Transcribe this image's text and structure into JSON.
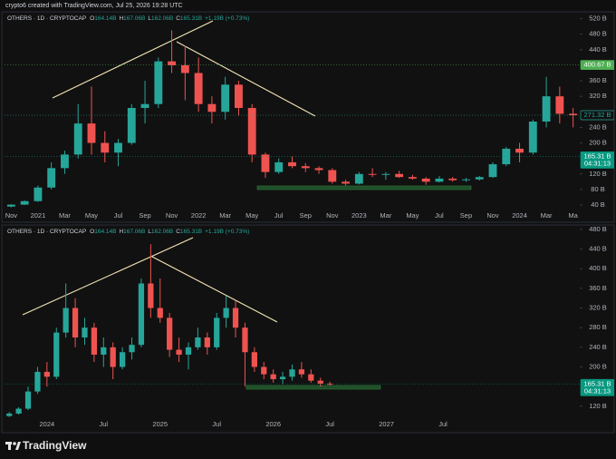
{
  "header": "crypto6 created with TradingView.com, Jul 25, 2026 19:28 UTC",
  "brand": "TradingView",
  "chart_data": [
    {
      "type": "candlestick",
      "symbol": "OTHERS · 1D · CRYPTOCAP",
      "ohlc": [
        {
          "key": "O",
          "value": "164.14B"
        },
        {
          "key": "H",
          "value": "167.06B"
        },
        {
          "key": "L",
          "value": "162.06B"
        },
        {
          "key": "C",
          "value": "165.31B"
        }
      ],
      "change": "+1.19B (+0.73%)",
      "categories": [
        "Nov",
        null,
        "2021",
        null,
        "Mar",
        null,
        "May",
        null,
        "Jul",
        null,
        "Sep",
        null,
        "Nov",
        null,
        "2022",
        null,
        "Mar",
        null,
        "May",
        null,
        "Jul",
        null,
        "Sep",
        null,
        "Nov",
        null,
        "2023",
        null,
        "Mar",
        null,
        "May",
        null,
        "Jul",
        null,
        "Sep",
        null,
        "Nov",
        null,
        "2024",
        null,
        "Mar",
        null,
        "Ma"
      ],
      "open": [
        36,
        41,
        50,
        85,
        135,
        170,
        250,
        200,
        175,
        200,
        290,
        300,
        410,
        400,
        380,
        300,
        280,
        350,
        290,
        170,
        125,
        150,
        140,
        135,
        130,
        100,
        95,
        120,
        118,
        120,
        112,
        108,
        100,
        108,
        104,
        106,
        112,
        145,
        185,
        175,
        255,
        320,
        275
      ],
      "high": [
        42,
        52,
        90,
        150,
        180,
        300,
        345,
        230,
        210,
        300,
        360,
        420,
        490,
        450,
        420,
        320,
        370,
        360,
        300,
        175,
        160,
        165,
        148,
        140,
        135,
        105,
        125,
        135,
        125,
        128,
        118,
        112,
        115,
        112,
        110,
        115,
        150,
        190,
        200,
        260,
        370,
        345,
        290
      ],
      "low": [
        34,
        40,
        48,
        80,
        120,
        160,
        170,
        150,
        140,
        195,
        250,
        290,
        380,
        310,
        280,
        250,
        260,
        270,
        150,
        110,
        120,
        135,
        125,
        120,
        95,
        90,
        93,
        112,
        105,
        110,
        105,
        92,
        98,
        100,
        100,
        103,
        110,
        140,
        150,
        170,
        240,
        250,
        240
      ],
      "close": [
        41,
        50,
        85,
        135,
        170,
        250,
        200,
        175,
        200,
        290,
        300,
        410,
        400,
        380,
        300,
        280,
        350,
        290,
        170,
        125,
        150,
        140,
        135,
        130,
        100,
        95,
        120,
        118,
        120,
        112,
        108,
        100,
        108,
        104,
        106,
        112,
        145,
        185,
        175,
        255,
        320,
        275,
        271.32
      ],
      "up_color": "#26a69a",
      "down_color": "#ef5350",
      "ylim": [
        26,
        540
      ],
      "yticks": [
        {
          "value": 520,
          "label": "520 B"
        },
        {
          "value": 480,
          "label": "480 B"
        },
        {
          "value": 440,
          "label": "440 B"
        },
        {
          "value": 360,
          "label": "360 B"
        },
        {
          "value": 320,
          "label": "320 B"
        },
        {
          "value": 240,
          "label": "240 B"
        },
        {
          "value": 200,
          "label": "200 B"
        },
        {
          "value": 120,
          "label": "120 B"
        },
        {
          "value": 80,
          "label": "80 B"
        },
        {
          "value": 40,
          "label": "40 B"
        }
      ],
      "price_labels": [
        {
          "value": 400.67,
          "label": "400.67 B",
          "color": "#4caf50"
        },
        {
          "value": 271.32,
          "label": "271.32 B",
          "color": "#26a69a",
          "outlined": true
        },
        {
          "value": 165.31,
          "label": "165.31 B",
          "countdown": "04:31:13",
          "color": "#089981"
        }
      ]
    },
    {
      "type": "candlestick",
      "symbol": "OTHERS · 1D · CRYPTOCAP",
      "ohlc": [
        {
          "key": "O",
          "value": "164.14B"
        },
        {
          "key": "H",
          "value": "167.06B"
        },
        {
          "key": "L",
          "value": "162.06B"
        },
        {
          "key": "C",
          "value": "165.31B"
        }
      ],
      "change": "+1.19B (+0.73%)",
      "categories": [
        null,
        null,
        null,
        null,
        "2024",
        null,
        null,
        null,
        null,
        null,
        "Jul",
        null,
        null,
        null,
        null,
        null,
        "2025",
        null,
        null,
        null,
        null,
        null,
        "Jul",
        null,
        null,
        null,
        null,
        null,
        "2026",
        null,
        null,
        null,
        null,
        null,
        "Jul",
        null,
        null,
        null,
        null,
        null,
        "2027",
        null,
        null,
        null,
        null,
        null,
        "Jul",
        null,
        null,
        null,
        null,
        null,
        null,
        null,
        null,
        null,
        null,
        null,
        null,
        null,
        null
      ],
      "open": [
        100,
        105,
        115,
        150,
        190,
        180,
        270,
        320,
        260,
        280,
        225,
        240,
        200,
        230,
        245,
        370,
        320,
        300,
        235,
        225,
        240,
        260,
        240,
        300,
        320,
        280,
        230,
        200,
        185,
        175,
        180,
        195,
        185,
        172,
        166,
        null,
        null,
        null,
        null,
        null,
        null,
        null,
        null,
        null,
        null,
        null,
        null,
        null,
        null,
        null,
        null,
        null,
        null,
        null,
        null,
        null,
        null,
        null,
        null,
        null,
        null
      ],
      "high": [
        108,
        118,
        160,
        200,
        210,
        280,
        370,
        340,
        300,
        290,
        260,
        250,
        240,
        260,
        380,
        450,
        380,
        310,
        260,
        250,
        280,
        270,
        310,
        345,
        335,
        290,
        240,
        210,
        195,
        190,
        205,
        210,
        195,
        178,
        170,
        null,
        null,
        null,
        null,
        null,
        null,
        null,
        null,
        null,
        null,
        null,
        null,
        null,
        null,
        null,
        null,
        null,
        null,
        null,
        null,
        null,
        null,
        null,
        null,
        null,
        null
      ],
      "low": [
        98,
        103,
        112,
        145,
        160,
        175,
        260,
        240,
        245,
        210,
        200,
        175,
        195,
        215,
        240,
        300,
        290,
        220,
        210,
        195,
        235,
        225,
        235,
        280,
        260,
        160,
        190,
        175,
        168,
        165,
        172,
        178,
        168,
        160,
        162,
        null,
        null,
        null,
        null,
        null,
        null,
        null,
        null,
        null,
        null,
        null,
        null,
        null,
        null,
        null,
        null,
        null,
        null,
        null,
        null,
        null,
        null,
        null,
        null,
        null,
        null
      ],
      "close": [
        105,
        115,
        150,
        190,
        180,
        270,
        320,
        260,
        280,
        225,
        240,
        200,
        230,
        245,
        370,
        320,
        300,
        235,
        225,
        240,
        260,
        240,
        300,
        320,
        280,
        230,
        200,
        185,
        175,
        180,
        195,
        185,
        172,
        166,
        165.31,
        null,
        null,
        null,
        null,
        null,
        null,
        null,
        null,
        null,
        null,
        null,
        null,
        null,
        null,
        null,
        null,
        null,
        null,
        null,
        null,
        null,
        null,
        null,
        null,
        null,
        null
      ],
      "up_color": "#26a69a",
      "down_color": "#ef5350",
      "ylim": [
        79,
        491
      ],
      "yticks": [
        {
          "value": 480,
          "label": "480 B"
        },
        {
          "value": 440,
          "label": "440 B"
        },
        {
          "value": 400,
          "label": "400 B"
        },
        {
          "value": 360,
          "label": "360 B"
        },
        {
          "value": 320,
          "label": "320 B"
        },
        {
          "value": 280,
          "label": "280 B"
        },
        {
          "value": 240,
          "label": "240 B"
        },
        {
          "value": 200,
          "label": "200 B"
        },
        {
          "value": 120,
          "label": "120 B"
        }
      ],
      "price_labels": [
        {
          "value": 165.31,
          "label": "165.31 B",
          "countdown": "04:31:13",
          "color": "#089981"
        }
      ]
    }
  ]
}
